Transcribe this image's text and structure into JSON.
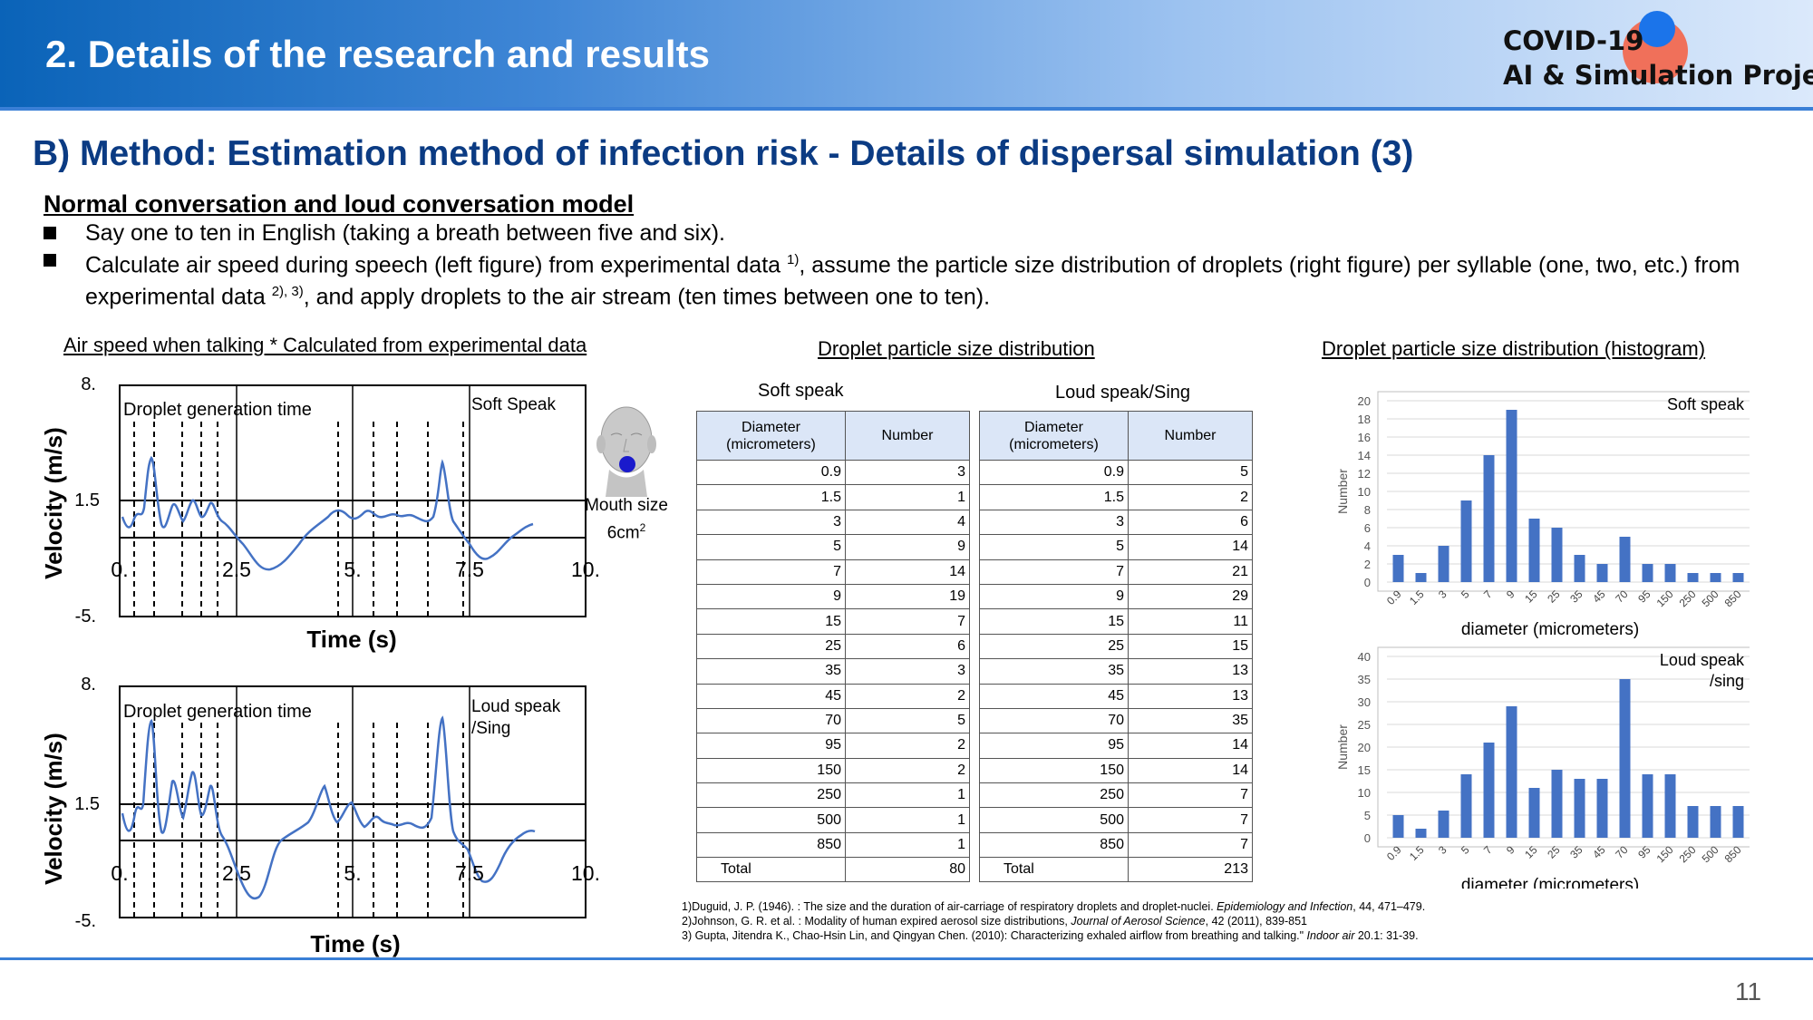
{
  "header": {
    "title": "2.  Details of the research and results",
    "logo_line1": "COVID-19",
    "logo_line2": "AI & Simulation Project"
  },
  "section_title": "B) Method: Estimation method of infection risk - Details of dispersal simulation (3)",
  "model_title": "Normal conversation and loud conversation model",
  "bullets": [
    "Say one to ten in English (taking a breath between five and six).",
    "Calculate air speed during speech (left figure) from experimental data ",
    "1)",
    ", assume the particle size distribution of droplets (right figure) per syllable (one, two, etc.) from experimental data ",
    "2), 3)",
    ", and apply droplets to the air stream (ten times between one to ten)."
  ],
  "left_figure": {
    "caption": "Air speed when talking * Calculated from experimental data",
    "ylabel": "Velocity (m/s)",
    "xlabel": "Time (s)",
    "y_ticks": [
      "8.",
      "1.5",
      "-5."
    ],
    "x_ticks": [
      "0.",
      "2.5",
      "5.",
      "7.5",
      "10."
    ],
    "droplet_label": "Droplet generation time",
    "top_label": "Soft Speak",
    "bottom_label_1": "Loud speak",
    "bottom_label_2": "/Sing",
    "mouth_label": "Mouth size",
    "mouth_value": "6cm",
    "mouth_sup": "2"
  },
  "table": {
    "caption": "Droplet particle size distribution",
    "soft_label": "Soft speak",
    "loud_label": "Loud speak/Sing",
    "col_diameter": "Diameter (micrometers)",
    "col_number": "Number",
    "total_label": "Total",
    "rows": [
      {
        "d": "0.9",
        "soft": "3",
        "loud": "5"
      },
      {
        "d": "1.5",
        "soft": "1",
        "loud": "2"
      },
      {
        "d": "3",
        "soft": "4",
        "loud": "6"
      },
      {
        "d": "5",
        "soft": "9",
        "loud": "14"
      },
      {
        "d": "7",
        "soft": "14",
        "loud": "21"
      },
      {
        "d": "9",
        "soft": "19",
        "loud": "29"
      },
      {
        "d": "15",
        "soft": "7",
        "loud": "11"
      },
      {
        "d": "25",
        "soft": "6",
        "loud": "15"
      },
      {
        "d": "35",
        "soft": "3",
        "loud": "13"
      },
      {
        "d": "45",
        "soft": "2",
        "loud": "13"
      },
      {
        "d": "70",
        "soft": "5",
        "loud": "35"
      },
      {
        "d": "95",
        "soft": "2",
        "loud": "14"
      },
      {
        "d": "150",
        "soft": "2",
        "loud": "14"
      },
      {
        "d": "250",
        "soft": "1",
        "loud": "7"
      },
      {
        "d": "500",
        "soft": "1",
        "loud": "7"
      },
      {
        "d": "850",
        "soft": "1",
        "loud": "7"
      }
    ],
    "soft_total": "80",
    "loud_total": "213"
  },
  "histogram_caption": "Droplet particle size distribution (histogram)",
  "chart_data": [
    {
      "type": "bar",
      "label": "Soft speak",
      "categories": [
        "0.9",
        "1.5",
        "3",
        "5",
        "7",
        "9",
        "15",
        "25",
        "35",
        "45",
        "70",
        "95",
        "150",
        "250",
        "500",
        "850"
      ],
      "values": [
        3,
        1,
        4,
        9,
        14,
        19,
        7,
        6,
        3,
        2,
        5,
        2,
        2,
        1,
        1,
        1
      ],
      "xlabel": "diameter (micrometers)",
      "ylabel": "Number",
      "ylim": [
        0,
        20
      ],
      "yticks": [
        0,
        2,
        4,
        6,
        8,
        10,
        12,
        14,
        16,
        18,
        20
      ],
      "color": "#4472c4"
    },
    {
      "type": "bar",
      "label": "Loud speak /sing",
      "label_line1": "Loud speak",
      "label_line2": "/sing",
      "categories": [
        "0.9",
        "1.5",
        "3",
        "5",
        "7",
        "9",
        "15",
        "25",
        "35",
        "45",
        "70",
        "95",
        "150",
        "250",
        "500",
        "850"
      ],
      "values": [
        5,
        2,
        6,
        14,
        21,
        29,
        11,
        15,
        13,
        13,
        35,
        14,
        14,
        7,
        7,
        7
      ],
      "xlabel": "diameter (micrometers)",
      "ylabel": "Number",
      "ylim": [
        0,
        40
      ],
      "yticks": [
        0,
        5,
        10,
        15,
        20,
        25,
        30,
        35,
        40
      ],
      "color": "#4472c4"
    }
  ],
  "references": [
    {
      "pre": "1)Duguid, J. P. (1946). : The size and the duration of air-carriage of respiratory droplets and droplet-nuclei. ",
      "ital": "Epidemiology and Infection",
      "post": ", 44, 471–479."
    },
    {
      "pre": "2)Johnson, G. R. et al. : Modality of human expired aerosol size distributions, ",
      "ital": "Journal of Aerosol Science",
      "post": ", 42 (2011), 839-851"
    },
    {
      "pre": "3) Gupta, Jitendra K., Chao-Hsin Lin, and Qingyan Chen. (2010): Characterizing exhaled airflow from breathing and talking.\" ",
      "ital": "Indoor air",
      "post": " 20.1: 31-39."
    }
  ],
  "page_number": "11"
}
